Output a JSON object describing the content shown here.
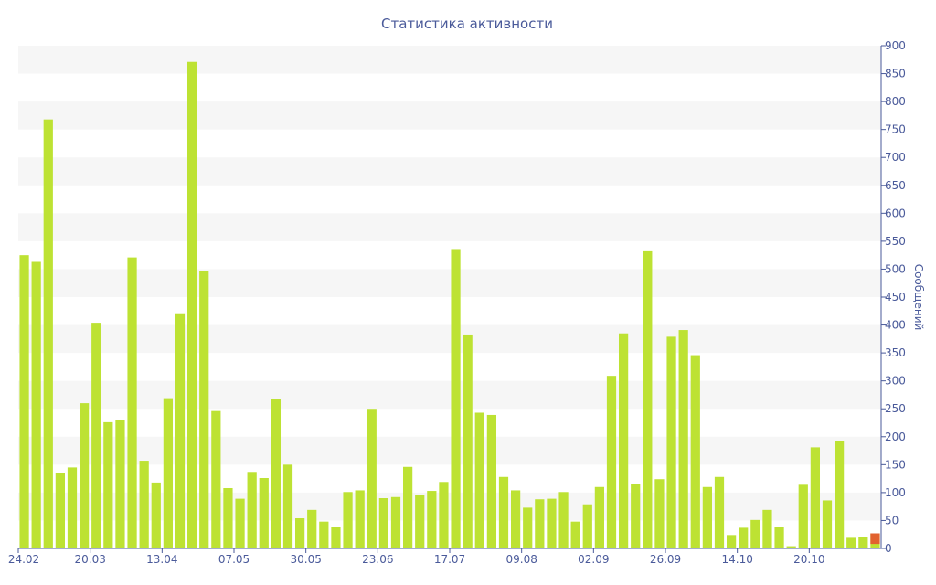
{
  "chart_data": {
    "type": "bar",
    "title": "Статистика активности",
    "xlabel": "",
    "ylabel": "Сообщений",
    "ylim": [
      0,
      900
    ],
    "y_ticks": [
      0,
      50,
      100,
      150,
      200,
      250,
      300,
      350,
      400,
      450,
      500,
      550,
      600,
      650,
      700,
      750,
      800,
      850,
      900
    ],
    "y_axis_position": "right",
    "grid": "horizontal alternating bands",
    "x_tick_labels": [
      "24.02",
      "20.03",
      "13.04",
      "07.05",
      "30.05",
      "23.06",
      "17.07",
      "09.08",
      "02.09",
      "26.09",
      "14.10",
      "20.10"
    ],
    "x_tick_bar_index": [
      0,
      6,
      12,
      18,
      24,
      30,
      36,
      42,
      48,
      54,
      60,
      66
    ],
    "series": [
      {
        "values": [
          525,
          513,
          768,
          135,
          145,
          260,
          404,
          226,
          230,
          521,
          157,
          118,
          269,
          421,
          871,
          497,
          246,
          108,
          89,
          137,
          126,
          267,
          150,
          54,
          69,
          48,
          38,
          101,
          104,
          250,
          90,
          92,
          146,
          96,
          103,
          119,
          536,
          383,
          243,
          239,
          128,
          104,
          73,
          88,
          89,
          101,
          48,
          79,
          110,
          309,
          385,
          115,
          532,
          124,
          379,
          391,
          346,
          110,
          128,
          24,
          37,
          51,
          69,
          38,
          4,
          114,
          181,
          86,
          193,
          19,
          20,
          27
        ],
        "highlight_last_bottom": 8
      }
    ],
    "colors": {
      "bar": "#bde233",
      "bar_highlight": "#e2622f",
      "band": "#f6f6f6",
      "text": "#4a5a9a",
      "axis": "#4a5a9a"
    }
  }
}
